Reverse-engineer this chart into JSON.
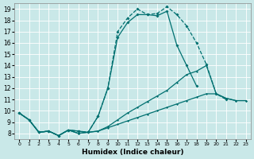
{
  "xlabel": "Humidex (Indice chaleur)",
  "xlim": [
    -0.5,
    23.5
  ],
  "ylim": [
    7.5,
    19.5
  ],
  "xticks": [
    0,
    1,
    2,
    3,
    4,
    5,
    6,
    7,
    8,
    9,
    10,
    11,
    12,
    13,
    14,
    15,
    16,
    17,
    18,
    19,
    20,
    21,
    22,
    23
  ],
  "yticks": [
    8,
    9,
    10,
    11,
    12,
    13,
    14,
    15,
    16,
    17,
    18,
    19
  ],
  "bg_color": "#c9e8e8",
  "line_color": "#007070",
  "grid_color": "#ffffff",
  "line1": {
    "x": [
      0,
      1,
      2,
      3,
      4,
      5,
      6,
      7,
      8,
      9,
      10,
      11,
      12,
      13,
      14,
      15,
      16,
      17,
      18,
      19,
      20,
      21
    ],
    "y": [
      9.8,
      9.2,
      8.1,
      8.2,
      7.8,
      8.3,
      8.2,
      8.1,
      9.5,
      12.0,
      17.0,
      18.2,
      19.0,
      18.5,
      18.6,
      19.2,
      18.5,
      17.5,
      16.0,
      14.1,
      11.5,
      11.0
    ]
  },
  "line2": {
    "x": [
      0,
      1,
      2,
      3,
      4,
      5,
      6,
      7,
      8,
      9,
      10,
      11,
      12,
      13,
      14,
      15,
      16,
      17,
      18,
      19,
      20,
      21,
      22,
      23
    ],
    "y": [
      9.8,
      9.2,
      8.1,
      8.2,
      7.8,
      8.3,
      8.2,
      8.1,
      9.5,
      12.0,
      16.5,
      17.8,
      18.5,
      18.5,
      18.4,
      18.8,
      15.8,
      14.0,
      12.2,
      null,
      null,
      null,
      null,
      null
    ]
  },
  "line3": {
    "x": [
      0,
      1,
      2,
      3,
      4,
      5,
      6,
      7,
      8,
      9,
      10,
      11,
      12,
      13,
      14,
      15,
      16,
      17,
      18,
      19,
      20,
      21,
      22,
      23
    ],
    "y": [
      9.8,
      9.2,
      8.1,
      8.2,
      7.8,
      8.3,
      8.0,
      8.1,
      8.2,
      8.6,
      9.2,
      9.8,
      10.3,
      10.8,
      11.3,
      11.8,
      12.5,
      13.2,
      13.5,
      14.0,
      11.5,
      11.1,
      10.9,
      10.9
    ]
  },
  "line4": {
    "x": [
      0,
      1,
      2,
      3,
      4,
      5,
      6,
      7,
      8,
      9,
      10,
      11,
      12,
      13,
      14,
      15,
      16,
      17,
      18,
      19,
      20,
      21,
      22,
      23
    ],
    "y": [
      9.8,
      9.2,
      8.1,
      8.2,
      7.8,
      8.3,
      8.0,
      8.1,
      8.2,
      8.5,
      8.8,
      9.1,
      9.4,
      9.7,
      10.0,
      10.3,
      10.6,
      10.9,
      11.2,
      11.5,
      11.5,
      11.1,
      10.9,
      10.9
    ]
  }
}
